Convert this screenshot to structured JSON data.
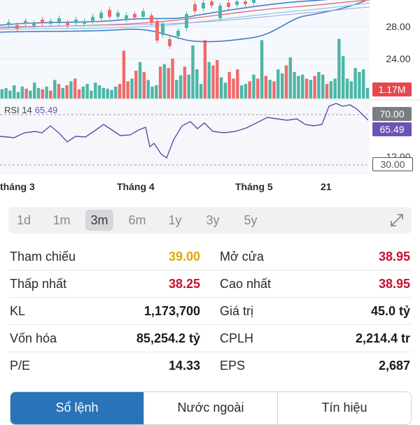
{
  "chart": {
    "price_ticks": [
      "28.00",
      "24.00"
    ],
    "volume_tag": "1.17M",
    "rsi": {
      "title": "RSI 14",
      "value": "65.49",
      "upper": "70.00",
      "lower": "30.00",
      "partial_tick": "12.00"
    },
    "months": [
      "tháng 3",
      "Tháng 4",
      "Tháng 5",
      "21"
    ],
    "colors": {
      "up": "#4db6a6",
      "down": "#ef6b6b",
      "rsi": "#5a4ca6",
      "band": "#3c78c8"
    }
  },
  "ranges": {
    "items": [
      "1d",
      "1m",
      "3m",
      "6m",
      "1y",
      "3y",
      "5y"
    ],
    "active": "3m",
    "expand_icon": "expand-icon"
  },
  "stats": [
    {
      "l1": "Tham chiếu",
      "v1": "39.00",
      "c1": "#e0a800",
      "l2": "Mở cửa",
      "v2": "38.95",
      "c2": "#c8102e"
    },
    {
      "l1": "Thấp nhất",
      "v1": "38.25",
      "c1": "#c8102e",
      "l2": "Cao nhất",
      "v2": "38.95",
      "c2": "#c8102e"
    },
    {
      "l1": "KL",
      "v1": "1,173,700",
      "c1": "#1b1b1b",
      "l2": "Giá trị",
      "v2": "45.0 tỷ",
      "c2": "#1b1b1b"
    },
    {
      "l1": "Vốn hóa",
      "v1": "85,254.2 tỷ",
      "c1": "#1b1b1b",
      "l2": "CPLH",
      "v2": "2,214.4 tr",
      "c2": "#1b1b1b"
    },
    {
      "l1": "P/E",
      "v1": "14.33",
      "c1": "#1b1b1b",
      "l2": "EPS",
      "v2": "2,687",
      "c2": "#1b1b1b"
    }
  ],
  "tabs": [
    "Sổ lệnh",
    "Nước ngoài",
    "Tín hiệu"
  ],
  "active_tab": "Sổ lệnh"
}
